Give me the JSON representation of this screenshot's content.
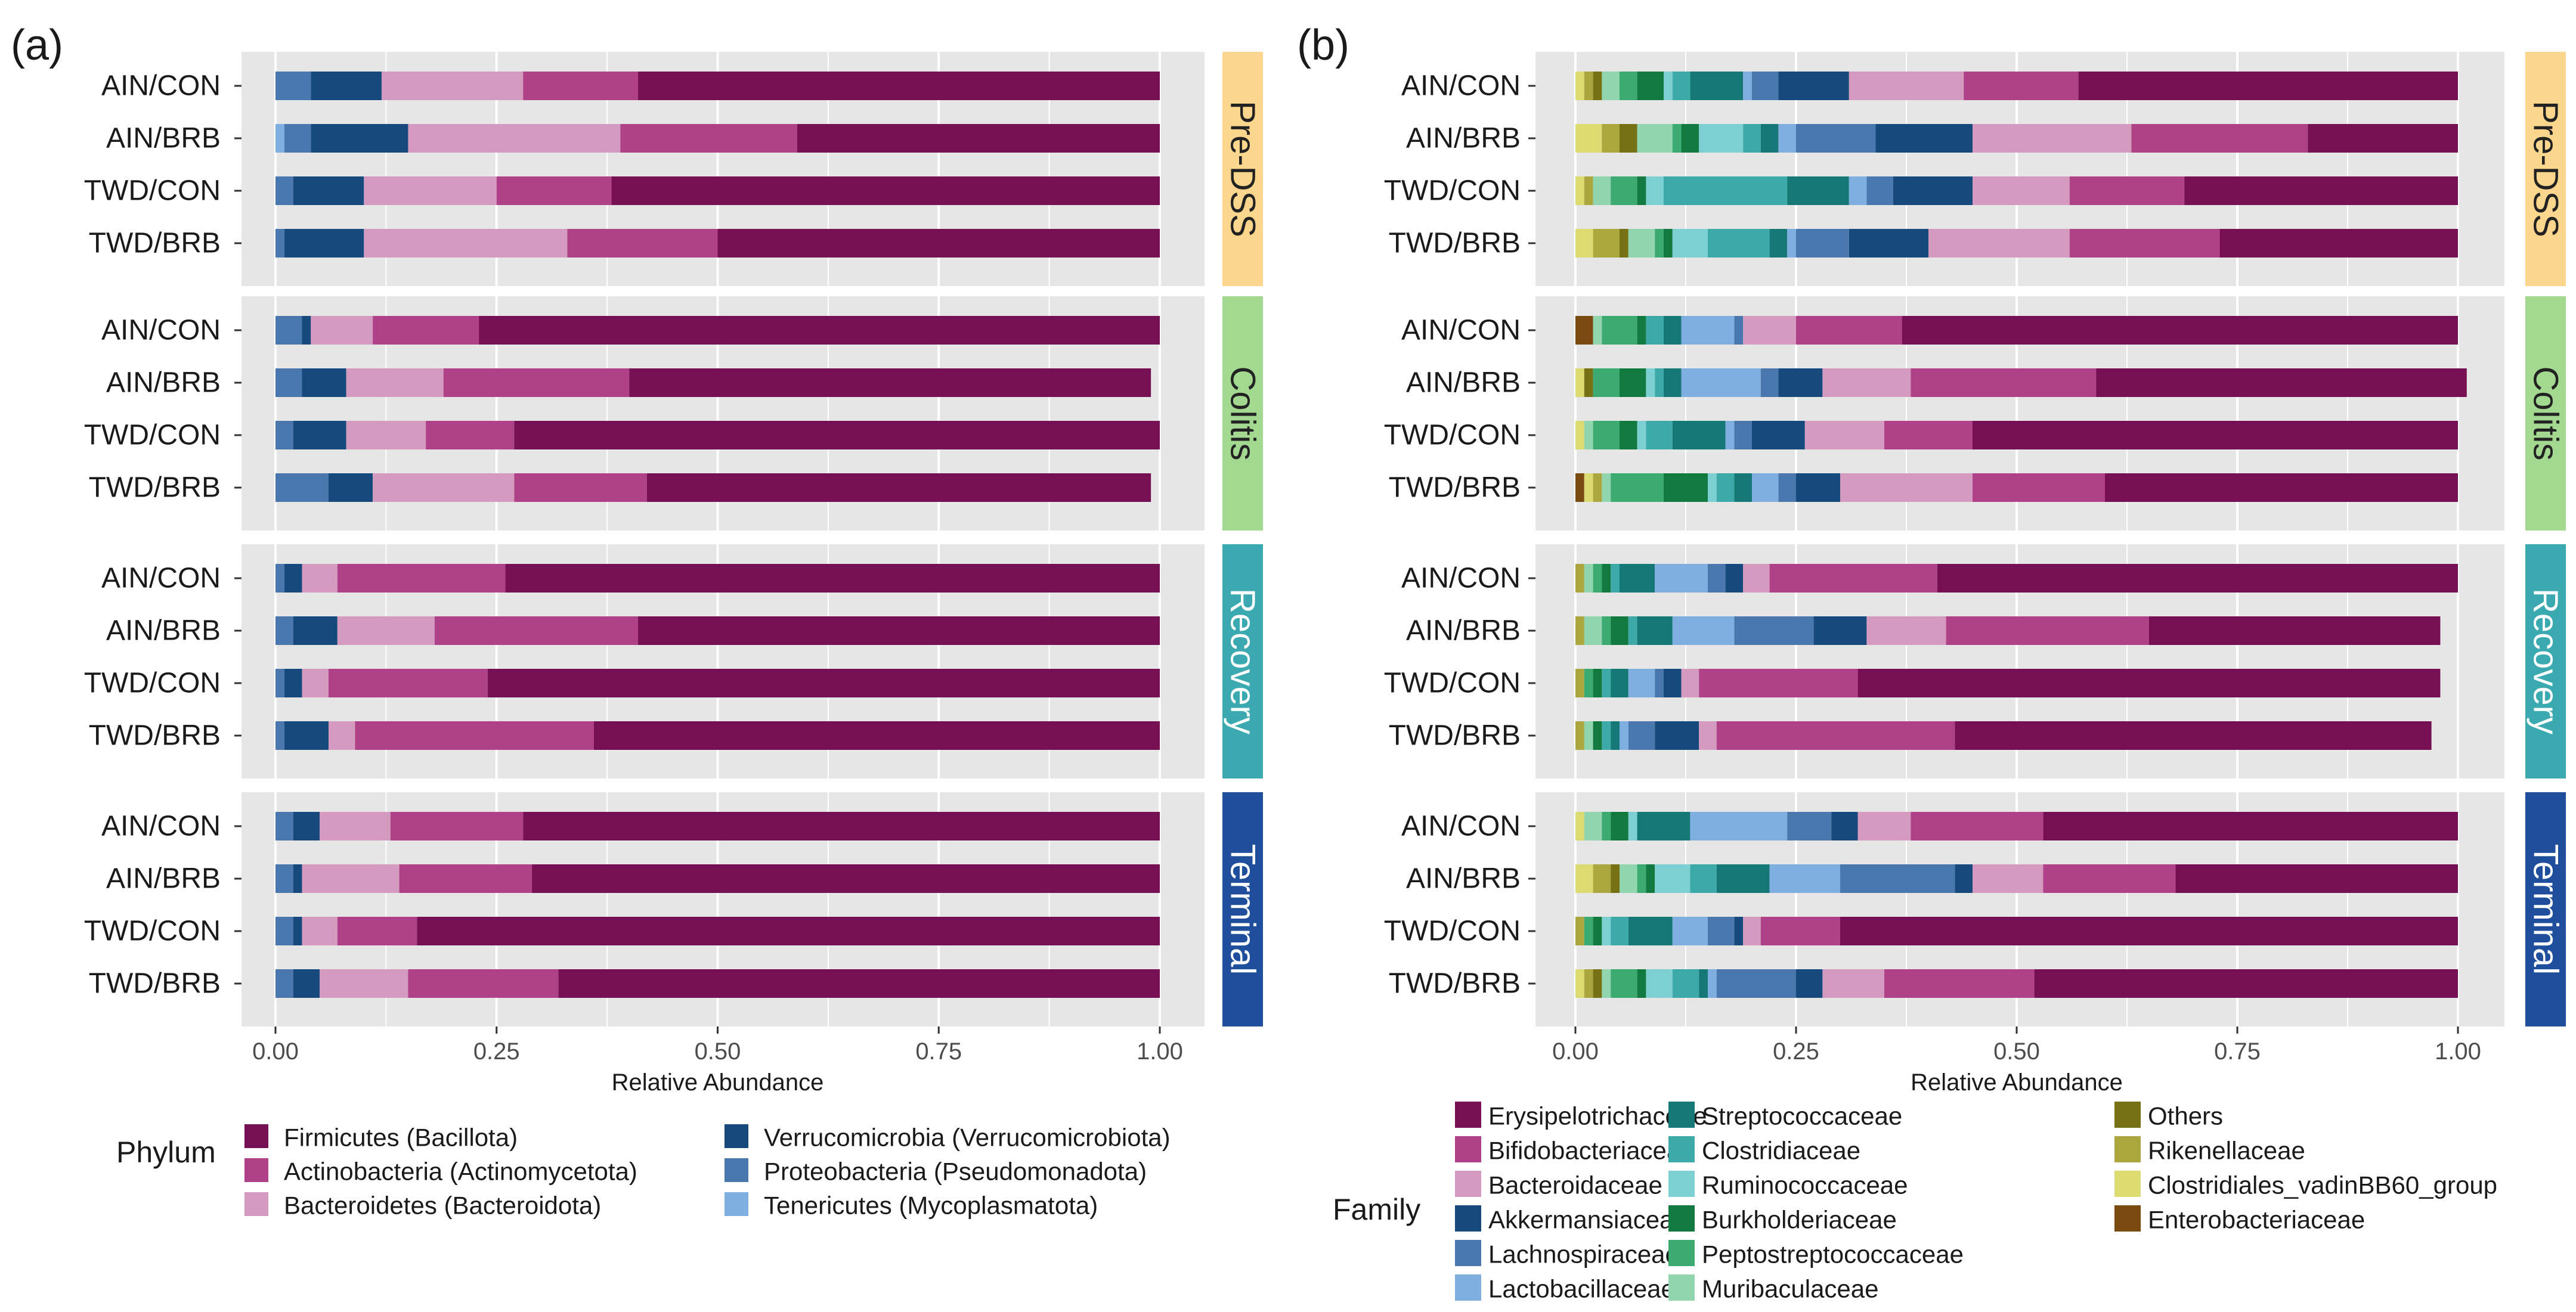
{
  "figure": {
    "panel_labels": [
      "(a)",
      "(b)"
    ],
    "samples": [
      "AIN/CON",
      "AIN/BRB",
      "TWD/CON",
      "TWD/BRB"
    ],
    "stages": [
      {
        "label": "Pre-DSS",
        "color": "#FBD68C",
        "text_color": "#222222"
      },
      {
        "label": "Colitis",
        "color": "#A2D88F",
        "text_color": "#222222"
      },
      {
        "label": "Recovery",
        "color": "#3BA9B0",
        "text_color": "#ffffff"
      },
      {
        "label": "Terminal",
        "color": "#1F4E9C",
        "text_color": "#ffffff"
      }
    ],
    "x_ticks": [
      "0.00",
      "0.25",
      "0.50",
      "0.75",
      "1.00"
    ],
    "xlabel": "Relative Abundance"
  },
  "chart_data": [
    {
      "type": "bar",
      "orientation": "horizontal-stacked",
      "panel": "(a)",
      "xlabel": "Relative Abundance",
      "xlim": [
        0,
        1
      ],
      "legend_title": "Phylum",
      "legend_position": "bottom",
      "series": [
        {
          "name": "Tenericutes (Mycoplasmatota)",
          "color": "#7FAEE0"
        },
        {
          "name": "Proteobacteria (Pseudomonadota)",
          "color": "#4A78AE"
        },
        {
          "name": "Verrucomicrobia (Verrucomicrobiota)",
          "color": "#174A7C"
        },
        {
          "name": "Bacteroidetes (Bacteroidota)",
          "color": "#D49AC0"
        },
        {
          "name": "Actinobacteria (Actinomycetota)",
          "color": "#AE4187"
        },
        {
          "name": "Firmicutes (Bacillota)",
          "color": "#760F54"
        }
      ],
      "legend_order": [
        "Firmicutes (Bacillota)",
        "Actinobacteria (Actinomycetota)",
        "Bacteroidetes (Bacteroidota)",
        "Verrucomicrobia (Verrucomicrobiota)",
        "Proteobacteria (Pseudomonadota)",
        "Tenericutes (Mycoplasmatota)"
      ],
      "facets": [
        {
          "stage": "Pre-DSS",
          "rows": [
            {
              "sample": "AIN/CON",
              "values": [
                0.0,
                0.04,
                0.08,
                0.16,
                0.13,
                0.59
              ]
            },
            {
              "sample": "AIN/BRB",
              "values": [
                0.01,
                0.03,
                0.11,
                0.24,
                0.2,
                0.41
              ]
            },
            {
              "sample": "TWD/CON",
              "values": [
                0.0,
                0.02,
                0.08,
                0.15,
                0.13,
                0.62
              ]
            },
            {
              "sample": "TWD/BRB",
              "values": [
                0.0,
                0.01,
                0.09,
                0.23,
                0.17,
                0.5
              ]
            }
          ]
        },
        {
          "stage": "Colitis",
          "rows": [
            {
              "sample": "AIN/CON",
              "values": [
                0.0,
                0.03,
                0.01,
                0.07,
                0.12,
                0.77
              ]
            },
            {
              "sample": "AIN/BRB",
              "values": [
                0.0,
                0.03,
                0.05,
                0.11,
                0.21,
                0.59
              ]
            },
            {
              "sample": "TWD/CON",
              "values": [
                0.0,
                0.02,
                0.06,
                0.09,
                0.1,
                0.73
              ]
            },
            {
              "sample": "TWD/BRB",
              "values": [
                0.0,
                0.06,
                0.05,
                0.16,
                0.15,
                0.57
              ]
            }
          ]
        },
        {
          "stage": "Recovery",
          "rows": [
            {
              "sample": "AIN/CON",
              "values": [
                0.0,
                0.01,
                0.02,
                0.04,
                0.19,
                0.74
              ]
            },
            {
              "sample": "AIN/BRB",
              "values": [
                0.0,
                0.02,
                0.05,
                0.11,
                0.23,
                0.59
              ]
            },
            {
              "sample": "TWD/CON",
              "values": [
                0.0,
                0.01,
                0.02,
                0.03,
                0.18,
                0.76
              ]
            },
            {
              "sample": "TWD/BRB",
              "values": [
                0.0,
                0.01,
                0.05,
                0.03,
                0.27,
                0.64
              ]
            }
          ]
        },
        {
          "stage": "Terminal",
          "rows": [
            {
              "sample": "AIN/CON",
              "values": [
                0.0,
                0.02,
                0.03,
                0.08,
                0.15,
                0.72
              ]
            },
            {
              "sample": "AIN/BRB",
              "values": [
                0.0,
                0.02,
                0.01,
                0.11,
                0.15,
                0.71
              ]
            },
            {
              "sample": "TWD/CON",
              "values": [
                0.0,
                0.02,
                0.01,
                0.04,
                0.09,
                0.84
              ]
            },
            {
              "sample": "TWD/BRB",
              "values": [
                0.0,
                0.02,
                0.03,
                0.1,
                0.17,
                0.68
              ]
            }
          ]
        }
      ]
    },
    {
      "type": "bar",
      "orientation": "horizontal-stacked",
      "panel": "(b)",
      "xlabel": "Relative Abundance",
      "xlim": [
        0,
        1
      ],
      "legend_title": "Family",
      "legend_position": "bottom",
      "series": [
        {
          "name": "Enterobacteriaceae",
          "color": "#7A4A12"
        },
        {
          "name": "Clostridiales_vadinBB60_group",
          "color": "#DCDB72"
        },
        {
          "name": "Rikenellaceae",
          "color": "#ABA63E"
        },
        {
          "name": "Others",
          "color": "#767114"
        },
        {
          "name": "Muribaculaceae",
          "color": "#90D5AE"
        },
        {
          "name": "Peptostreptococcaceae",
          "color": "#3CAB72"
        },
        {
          "name": "Burkholderiaceae",
          "color": "#137A3F"
        },
        {
          "name": "Ruminococcaceae",
          "color": "#7DD0D2"
        },
        {
          "name": "Clostridiaceae",
          "color": "#3EA9A9"
        },
        {
          "name": "Streptococcaceae",
          "color": "#157876"
        },
        {
          "name": "Lactobacillaceae",
          "color": "#7FAEE0"
        },
        {
          "name": "Lachnospiraceae",
          "color": "#4A78AE"
        },
        {
          "name": "Akkermansiaceae",
          "color": "#174A7C"
        },
        {
          "name": "Bacteroidaceae",
          "color": "#D49AC0"
        },
        {
          "name": "Bifidobacteriaceae",
          "color": "#AE4187"
        },
        {
          "name": "Erysipelotrichaceae",
          "color": "#760F54"
        }
      ],
      "legend_order": [
        "Erysipelotrichaceae",
        "Bifidobacteriaceae",
        "Bacteroidaceae",
        "Akkermansiaceae",
        "Lachnospiraceae",
        "Lactobacillaceae",
        "Streptococcaceae",
        "Clostridiaceae",
        "Ruminococcaceae",
        "Burkholderiaceae",
        "Peptostreptococcaceae",
        "Muribaculaceae",
        "Others",
        "Rikenellaceae",
        "Clostridiales_vadinBB60_group",
        "Enterobacteriaceae"
      ],
      "facets": [
        {
          "stage": "Pre-DSS",
          "rows": [
            {
              "sample": "AIN/CON",
              "values": [
                0.0,
                0.01,
                0.01,
                0.01,
                0.02,
                0.02,
                0.03,
                0.01,
                0.02,
                0.06,
                0.01,
                0.03,
                0.08,
                0.13,
                0.13,
                0.43
              ]
            },
            {
              "sample": "AIN/BRB",
              "values": [
                0.0,
                0.03,
                0.02,
                0.02,
                0.04,
                0.01,
                0.02,
                0.05,
                0.02,
                0.02,
                0.02,
                0.09,
                0.11,
                0.18,
                0.2,
                0.17
              ]
            },
            {
              "sample": "TWD/CON",
              "values": [
                0.0,
                0.01,
                0.01,
                0.0,
                0.02,
                0.03,
                0.01,
                0.02,
                0.14,
                0.07,
                0.02,
                0.03,
                0.09,
                0.11,
                0.13,
                0.31
              ]
            },
            {
              "sample": "TWD/BRB",
              "values": [
                0.0,
                0.02,
                0.03,
                0.01,
                0.03,
                0.01,
                0.01,
                0.04,
                0.07,
                0.02,
                0.01,
                0.06,
                0.09,
                0.16,
                0.17,
                0.27
              ]
            }
          ]
        },
        {
          "stage": "Colitis",
          "rows": [
            {
              "sample": "AIN/CON",
              "values": [
                0.02,
                0.0,
                0.0,
                0.0,
                0.01,
                0.04,
                0.01,
                0.0,
                0.02,
                0.02,
                0.06,
                0.01,
                0.0,
                0.06,
                0.12,
                0.63
              ]
            },
            {
              "sample": "AIN/BRB",
              "values": [
                0.0,
                0.01,
                0.0,
                0.01,
                0.0,
                0.03,
                0.03,
                0.01,
                0.01,
                0.02,
                0.09,
                0.02,
                0.05,
                0.1,
                0.21,
                0.42
              ]
            },
            {
              "sample": "TWD/CON",
              "values": [
                0.0,
                0.01,
                0.0,
                0.0,
                0.01,
                0.03,
                0.02,
                0.01,
                0.03,
                0.06,
                0.01,
                0.02,
                0.06,
                0.09,
                0.1,
                0.55
              ]
            },
            {
              "sample": "TWD/BRB",
              "values": [
                0.01,
                0.01,
                0.01,
                0.0,
                0.01,
                0.06,
                0.05,
                0.01,
                0.02,
                0.02,
                0.03,
                0.02,
                0.05,
                0.15,
                0.15,
                0.4
              ]
            }
          ]
        },
        {
          "stage": "Recovery",
          "rows": [
            {
              "sample": "AIN/CON",
              "values": [
                0.0,
                0.0,
                0.01,
                0.0,
                0.01,
                0.01,
                0.01,
                0.0,
                0.01,
                0.04,
                0.06,
                0.02,
                0.02,
                0.03,
                0.19,
                0.59
              ]
            },
            {
              "sample": "AIN/BRB",
              "values": [
                0.0,
                0.0,
                0.01,
                0.0,
                0.02,
                0.01,
                0.02,
                0.0,
                0.01,
                0.04,
                0.07,
                0.09,
                0.06,
                0.09,
                0.23,
                0.33
              ]
            },
            {
              "sample": "TWD/CON",
              "values": [
                0.0,
                0.0,
                0.01,
                0.0,
                0.0,
                0.01,
                0.01,
                0.0,
                0.01,
                0.02,
                0.03,
                0.01,
                0.02,
                0.02,
                0.18,
                0.66
              ]
            },
            {
              "sample": "TWD/BRB",
              "values": [
                0.0,
                0.0,
                0.01,
                0.0,
                0.01,
                0.0,
                0.01,
                0.0,
                0.01,
                0.01,
                0.01,
                0.03,
                0.05,
                0.02,
                0.27,
                0.54
              ]
            }
          ]
        },
        {
          "stage": "Terminal",
          "rows": [
            {
              "sample": "AIN/CON",
              "values": [
                0.0,
                0.01,
                0.0,
                0.0,
                0.02,
                0.01,
                0.02,
                0.01,
                0.0,
                0.06,
                0.11,
                0.05,
                0.03,
                0.06,
                0.15,
                0.47
              ]
            },
            {
              "sample": "AIN/BRB",
              "values": [
                0.0,
                0.02,
                0.02,
                0.01,
                0.02,
                0.01,
                0.01,
                0.04,
                0.03,
                0.06,
                0.08,
                0.13,
                0.02,
                0.08,
                0.15,
                0.32
              ]
            },
            {
              "sample": "TWD/CON",
              "values": [
                0.0,
                0.0,
                0.01,
                0.0,
                0.0,
                0.01,
                0.01,
                0.01,
                0.02,
                0.05,
                0.04,
                0.03,
                0.01,
                0.02,
                0.09,
                0.7
              ]
            },
            {
              "sample": "TWD/BRB",
              "values": [
                0.0,
                0.01,
                0.01,
                0.01,
                0.01,
                0.03,
                0.01,
                0.03,
                0.03,
                0.01,
                0.01,
                0.09,
                0.03,
                0.07,
                0.17,
                0.48
              ]
            }
          ]
        }
      ]
    }
  ]
}
